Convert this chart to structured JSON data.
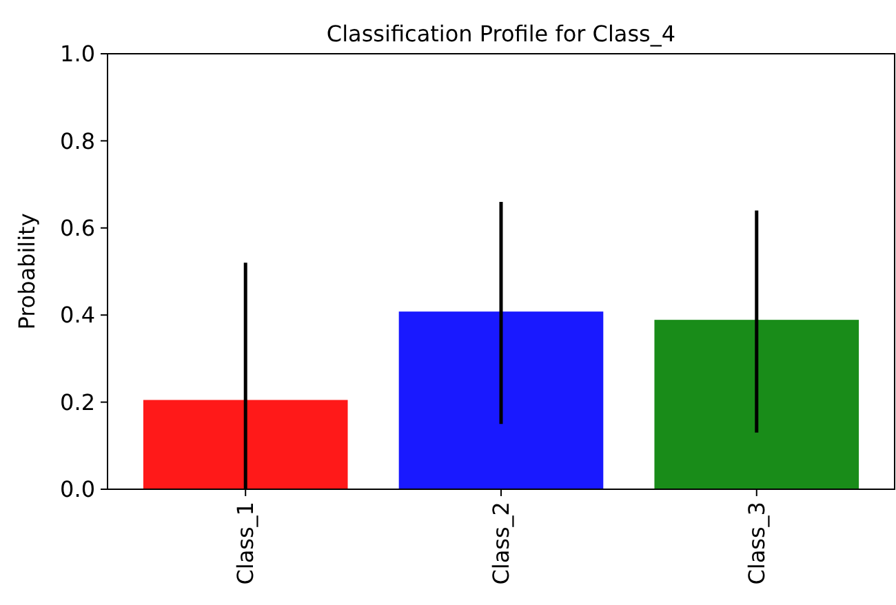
{
  "chart_data": {
    "type": "bar",
    "title": "Classification Profile for Class_4",
    "ylabel": "Probability",
    "categories": [
      "Class_1",
      "Class_2",
      "Class_3"
    ],
    "values": [
      0.205,
      0.408,
      0.389
    ],
    "colors": [
      "#ff1919",
      "#1919ff",
      "#198c19"
    ],
    "errors": [
      [
        0,
        0.52
      ],
      [
        0.15,
        0.66
      ],
      [
        0.13,
        0.64
      ]
    ],
    "ylim": [
      0,
      1
    ],
    "yticks": [
      {
        "value": 0,
        "label": "0.0"
      },
      {
        "value": 0.2,
        "label": "0.2"
      },
      {
        "value": 0.4,
        "label": "0.4"
      },
      {
        "value": 0.6,
        "label": "0.6"
      },
      {
        "value": 0.8,
        "label": "0.8"
      },
      {
        "value": 1,
        "label": "1.0"
      }
    ],
    "grid": false
  }
}
